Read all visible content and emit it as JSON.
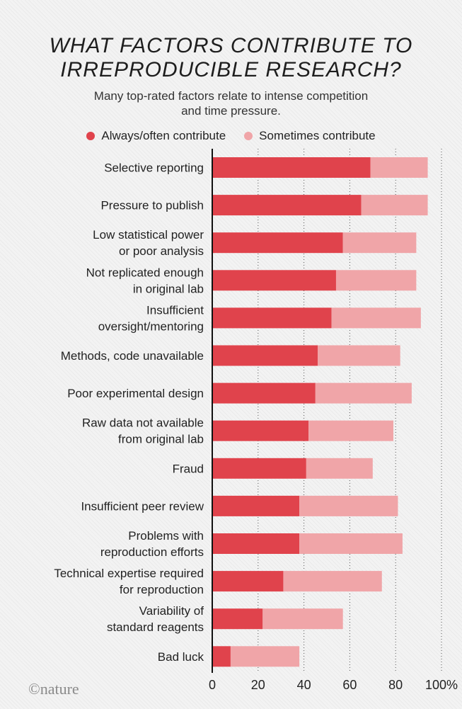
{
  "title_line1": "WHAT FACTORS CONTRIBUTE TO",
  "title_line2": "IRREPRODUCIBLE RESEARCH?",
  "subtitle_line1": "Many top-rated factors relate to intense competition",
  "subtitle_line2": "and time pressure.",
  "logo": "©nature",
  "colors": {
    "always": "#e0434c",
    "sometimes": "#f0a5a8"
  },
  "chart_data": {
    "type": "bar",
    "orientation": "horizontal",
    "stacked": true,
    "categories": [
      [
        "Selective reporting"
      ],
      [
        "Pressure to publish"
      ],
      [
        "Low statistical power",
        "or poor analysis"
      ],
      [
        "Not replicated enough",
        "in original lab"
      ],
      [
        "Insufficient",
        "oversight/mentoring"
      ],
      [
        "Methods, code unavailable"
      ],
      [
        "Poor experimental design"
      ],
      [
        "Raw data not available",
        "from original lab"
      ],
      [
        "Fraud"
      ],
      [
        "Insufficient peer review"
      ],
      [
        "Problems with",
        "reproduction efforts"
      ],
      [
        "Technical expertise required",
        "for reproduction"
      ],
      [
        "Variability of",
        "standard reagents"
      ],
      [
        "Bad luck"
      ]
    ],
    "series": [
      {
        "name": "Always/often contribute",
        "values": [
          69,
          65,
          57,
          54,
          52,
          46,
          45,
          42,
          41,
          38,
          38,
          31,
          22,
          8
        ]
      },
      {
        "name": "Sometimes contribute",
        "values": [
          25,
          29,
          32,
          35,
          39,
          36,
          42,
          37,
          29,
          43,
          45,
          43,
          35,
          30
        ]
      }
    ],
    "xticks": [
      "0",
      "20",
      "40",
      "60",
      "80",
      "100%"
    ],
    "xlim": [
      0,
      100
    ],
    "grid": "vertical dotted",
    "legend_position": "top"
  }
}
